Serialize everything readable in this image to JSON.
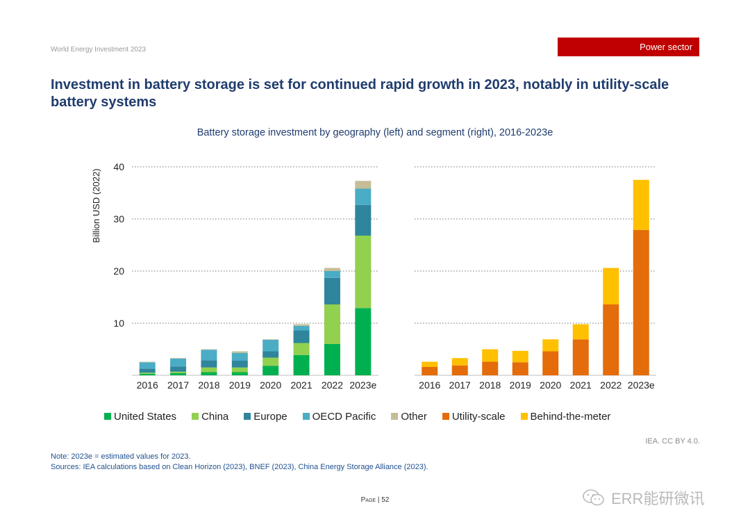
{
  "header": {
    "doc_name": "World Energy Investment 2023",
    "section": "Power sector"
  },
  "page_title": "Investment in battery storage is set for continued rapid growth in 2023, notably in utility-scale battery systems",
  "chart_title": "Battery storage investment by geography (left) and segment (right), 2016-2023e",
  "chart_data": [
    {
      "type": "bar",
      "stacked": true,
      "categories": [
        "2016",
        "2017",
        "2018",
        "2019",
        "2020",
        "2021",
        "2022",
        "2023e"
      ],
      "ylabel": "Billion USD (2022)",
      "ylim": [
        0,
        40
      ],
      "yticks": [
        10,
        20,
        30,
        40
      ],
      "grid": true,
      "series": [
        {
          "name": "United States",
          "color": "#00b050",
          "values": [
            0.3,
            0.4,
            0.6,
            0.6,
            1.8,
            3.9,
            6.0,
            12.9
          ]
        },
        {
          "name": "China",
          "color": "#92d050",
          "values": [
            0.2,
            0.3,
            0.9,
            0.9,
            1.6,
            2.3,
            7.6,
            13.9
          ]
        },
        {
          "name": "Europe",
          "color": "#2e859c",
          "values": [
            0.8,
            1.0,
            1.4,
            1.3,
            1.2,
            2.4,
            5.1,
            5.9
          ]
        },
        {
          "name": "OECD Pacific",
          "color": "#4bacc6",
          "values": [
            1.2,
            1.5,
            2.0,
            1.5,
            2.2,
            0.9,
            1.3,
            3.1
          ]
        },
        {
          "name": "Other",
          "color": "#c4bd97",
          "values": [
            0.1,
            0.1,
            0.1,
            0.3,
            0.1,
            0.3,
            0.6,
            1.5
          ]
        }
      ]
    },
    {
      "type": "bar",
      "stacked": true,
      "categories": [
        "2016",
        "2017",
        "2018",
        "2019",
        "2020",
        "2021",
        "2022",
        "2023e"
      ],
      "ylim": [
        0,
        40
      ],
      "grid": true,
      "series": [
        {
          "name": "Utility-scale",
          "color": "#e46c0a",
          "values": [
            1.6,
            1.9,
            2.6,
            2.5,
            4.6,
            6.9,
            13.6,
            27.9
          ]
        },
        {
          "name": "Behind-the-meter",
          "color": "#ffc000",
          "values": [
            1.0,
            1.4,
            2.4,
            2.2,
            2.3,
            2.9,
            7.0,
            9.6
          ]
        }
      ]
    }
  ],
  "credit": "IEA. CC BY 4.0.",
  "notes": {
    "note": "Note: 2023e = estimated values for 2023.",
    "sources": "Sources: IEA calculations based on Clean Horizon (2023), BNEF (2023), China Energy Storage Alliance (2023)."
  },
  "page_number": {
    "label": "Page",
    "number": "52"
  },
  "watermark": {
    "text": "ERR能研微讯",
    "icon": "wechat-icon"
  }
}
